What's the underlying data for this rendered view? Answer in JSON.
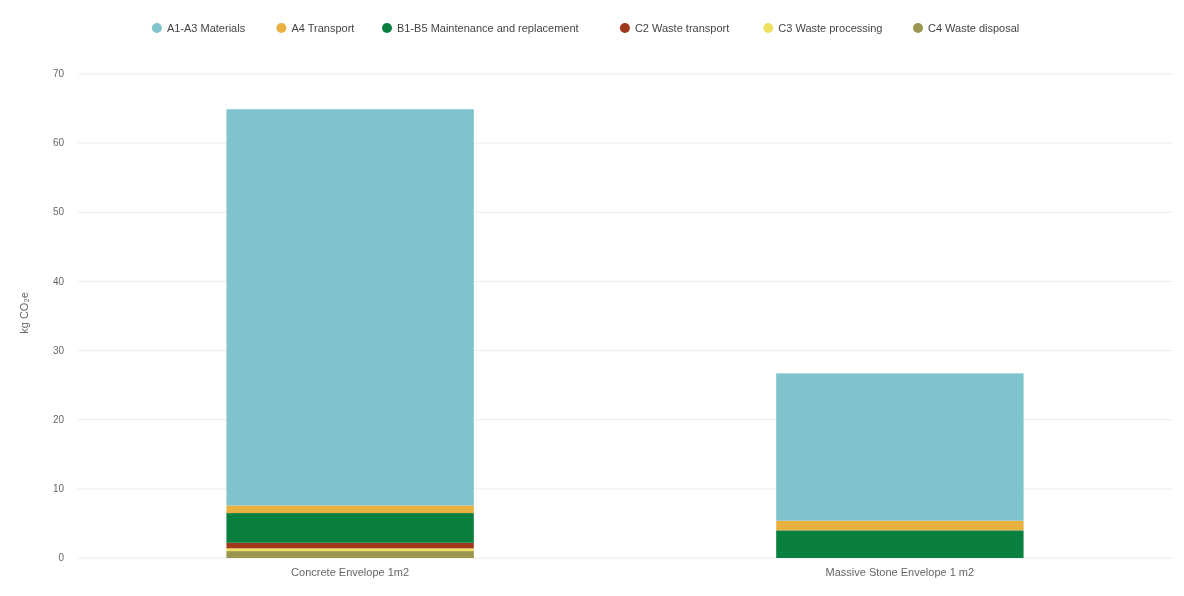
{
  "chart_data": {
    "type": "bar",
    "stacked": true,
    "ylabel": "kg CO₂e",
    "categories": [
      "Concrete Envelope 1m2",
      "Massive Stone Envelope 1 m2"
    ],
    "series": [
      {
        "name": "C4 Waste disposal",
        "color": "#9a9650",
        "values": [
          1.0,
          0
        ]
      },
      {
        "name": "C3 Waste processing",
        "color": "#f0e060",
        "values": [
          0.4,
          0
        ]
      },
      {
        "name": "C2 Waste transport",
        "color": "#a0381e",
        "values": [
          0.8,
          0
        ]
      },
      {
        "name": "B1-B5 Maintenance and replacement",
        "color": "#0a8040",
        "values": [
          4.3,
          4.0
        ]
      },
      {
        "name": "A4 Transport",
        "color": "#e8b040",
        "values": [
          1.1,
          1.4
        ]
      },
      {
        "name": "A1-A3 Materials",
        "color": "#7fc3cc",
        "values": [
          57.3,
          21.3
        ]
      }
    ],
    "ylim": [
      0,
      70
    ],
    "yticks": [
      0,
      10,
      20,
      30,
      40,
      50,
      60,
      70
    ],
    "grid": "y",
    "legend": "top"
  }
}
